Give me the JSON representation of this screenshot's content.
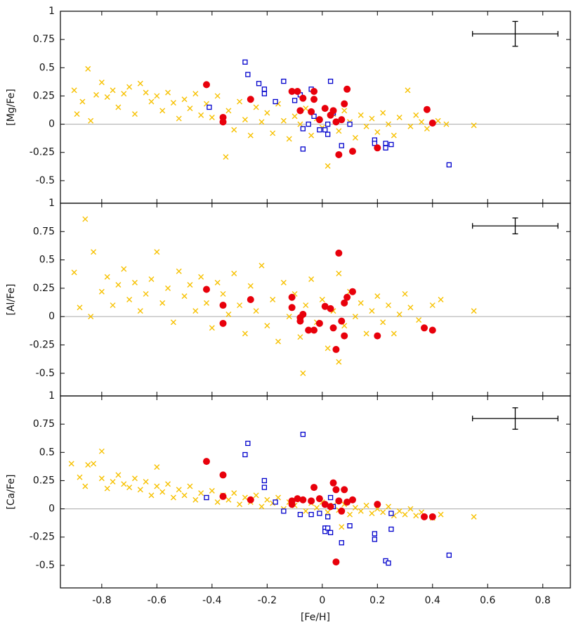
{
  "chart_data": [
    {
      "type": "scatter",
      "y_label": "[Mg/Fe]",
      "xlim": [
        -0.95,
        0.9
      ],
      "ylim": [
        -0.7,
        1
      ],
      "xticks": [
        -0.8,
        -0.6,
        -0.4,
        -0.2,
        0,
        0.2,
        0.4,
        0.6,
        0.8
      ],
      "yticks": [
        1,
        0.75,
        0.5,
        0.25,
        0,
        -0.25,
        -0.5
      ],
      "zero_line": true,
      "error_bar": {
        "x": 0.7,
        "y": 0.8,
        "xerr": 0.155,
        "yerr": 0.11
      },
      "series": [
        {
          "marker": "cross",
          "color": "#f7c100",
          "x": [
            -0.9,
            -0.89,
            -0.87,
            -0.85,
            -0.84,
            -0.82,
            -0.8,
            -0.78,
            -0.76,
            -0.74,
            -0.72,
            -0.7,
            -0.68,
            -0.66,
            -0.64,
            -0.62,
            -0.6,
            -0.58,
            -0.56,
            -0.54,
            -0.52,
            -0.5,
            -0.48,
            -0.46,
            -0.44,
            -0.42,
            -0.4,
            -0.38,
            -0.35,
            -0.34,
            -0.32,
            -0.3,
            -0.28,
            -0.26,
            -0.24,
            -0.22,
            -0.2,
            -0.18,
            -0.16,
            -0.14,
            -0.12,
            -0.1,
            -0.08,
            -0.06,
            -0.04,
            -0.02,
            0,
            0.02,
            0.04,
            0.06,
            0.08,
            0.1,
            0.12,
            0.14,
            0.16,
            0.18,
            0.2,
            0.22,
            0.24,
            0.26,
            0.28,
            0.31,
            0.32,
            0.34,
            0.36,
            0.38,
            0.42,
            0.45,
            0.55
          ],
          "values": [
            0.3,
            0.09,
            0.2,
            0.49,
            0.03,
            0.26,
            0.37,
            0.24,
            0.3,
            0.15,
            0.27,
            0.33,
            0.09,
            0.36,
            0.28,
            0.2,
            0.25,
            0.12,
            0.28,
            0.19,
            0.05,
            0.22,
            0.14,
            0.27,
            0.08,
            0.18,
            0.06,
            0.25,
            -0.29,
            0.12,
            -0.05,
            0.2,
            0.04,
            -0.1,
            0.15,
            0.02,
            0.1,
            -0.08,
            0.18,
            0.03,
            -0.13,
            0.07,
            0,
            0.14,
            -0.1,
            0.05,
            -0.03,
            -0.37,
            0.09,
            -0.06,
            0.12,
            0.02,
            -0.12,
            0.08,
            -0.02,
            0.05,
            -0.07,
            0.1,
            0,
            -0.1,
            0.06,
            0.3,
            -0.02,
            0.08,
            0.02,
            -0.04,
            0.03,
            0,
            -0.01
          ]
        },
        {
          "marker": "square",
          "color": "#0000cc",
          "x": [
            -0.28,
            -0.27,
            -0.23,
            -0.21,
            -0.21,
            -0.17,
            -0.14,
            -0.41,
            -0.1,
            -0.08,
            -0.07,
            -0.07,
            -0.05,
            -0.04,
            -0.03,
            -0.01,
            0.01,
            0.02,
            0.02,
            0.03,
            0.04,
            0.07,
            0.1,
            0.19,
            0.19,
            0.23,
            0.23,
            0.25,
            0.46
          ],
          "values": [
            0.55,
            0.44,
            0.36,
            0.31,
            0.27,
            0.2,
            0.38,
            0.15,
            0.21,
            0.26,
            -0.04,
            -0.22,
            0,
            0.31,
            0.07,
            -0.05,
            -0.05,
            0,
            -0.09,
            0.38,
            0.1,
            -0.19,
            0,
            -0.14,
            -0.17,
            -0.17,
            -0.21,
            -0.18,
            -0.36
          ]
        },
        {
          "marker": "circle",
          "color": "#e8000b",
          "x": [
            -0.42,
            -0.36,
            -0.36,
            -0.26,
            -0.11,
            -0.08,
            -0.07,
            -0.04,
            -0.03,
            -0.03,
            -0.01,
            0.01,
            0.03,
            0.04,
            0.05,
            0.06,
            0.07,
            0.08,
            0.09,
            0.11,
            0.2,
            0.38,
            0.4,
            -0.09
          ],
          "values": [
            0.35,
            0.06,
            0.02,
            0.22,
            0.29,
            0.12,
            0.23,
            0.11,
            0.22,
            0.29,
            0.04,
            0.14,
            0.08,
            0.12,
            0.02,
            -0.27,
            0.04,
            0.18,
            0.31,
            -0.24,
            -0.21,
            0.13,
            0.01,
            0.29
          ]
        }
      ]
    },
    {
      "type": "scatter",
      "y_label": "[Al/Fe]",
      "xlim": [
        -0.95,
        0.9
      ],
      "ylim": [
        -0.7,
        1
      ],
      "xticks": [
        -0.8,
        -0.6,
        -0.4,
        -0.2,
        0,
        0.2,
        0.4,
        0.6,
        0.8
      ],
      "yticks": [
        1,
        0.75,
        0.5,
        0.25,
        0,
        -0.25,
        -0.5
      ],
      "zero_line": true,
      "error_bar": {
        "x": 0.7,
        "y": 0.8,
        "xerr": 0.155,
        "yerr": 0.07
      },
      "series": [
        {
          "marker": "cross",
          "color": "#f7c100",
          "x": [
            -0.9,
            -0.88,
            -0.86,
            -0.84,
            -0.83,
            -0.8,
            -0.78,
            -0.76,
            -0.74,
            -0.72,
            -0.7,
            -0.68,
            -0.66,
            -0.64,
            -0.62,
            -0.6,
            -0.58,
            -0.56,
            -0.54,
            -0.52,
            -0.5,
            -0.48,
            -0.46,
            -0.44,
            -0.42,
            -0.4,
            -0.38,
            -0.36,
            -0.34,
            -0.32,
            -0.3,
            -0.28,
            -0.26,
            -0.24,
            -0.22,
            -0.2,
            -0.18,
            -0.16,
            -0.14,
            -0.12,
            -0.1,
            -0.08,
            -0.06,
            -0.04,
            -0.02,
            0,
            0.02,
            0.04,
            0.06,
            0.06,
            0.08,
            0.1,
            0.12,
            0.14,
            0.16,
            0.18,
            0.2,
            0.22,
            0.24,
            0.26,
            0.28,
            0.3,
            0.32,
            0.35,
            0.4,
            0.43,
            -0.07,
            0.55
          ],
          "values": [
            0.39,
            0.08,
            0.86,
            0,
            0.57,
            0.22,
            0.35,
            0.1,
            0.28,
            0.42,
            0.15,
            0.3,
            0.05,
            0.2,
            0.33,
            0.57,
            0.12,
            0.25,
            -0.05,
            0.4,
            0.18,
            0.28,
            0.05,
            0.35,
            0.12,
            -0.1,
            0.3,
            0.2,
            0.02,
            0.38,
            0.1,
            -0.15,
            0.27,
            0.05,
            0.45,
            -0.08,
            0.15,
            -0.22,
            0.3,
            0,
            0.2,
            -0.18,
            0.1,
            0.33,
            -0.05,
            0.15,
            -0.28,
            0.05,
            0.38,
            -0.4,
            -0.08,
            0.22,
            0,
            0.12,
            -0.15,
            0.05,
            0.18,
            -0.05,
            0.1,
            -0.15,
            0.02,
            0.2,
            0.08,
            -0.03,
            0.1,
            0.15,
            -0.5,
            0.05
          ]
        },
        {
          "marker": "circle",
          "color": "#e8000b",
          "x": [
            -0.42,
            -0.36,
            -0.36,
            -0.26,
            -0.11,
            -0.11,
            -0.08,
            -0.08,
            -0.07,
            -0.05,
            -0.03,
            -0.01,
            0.01,
            0.03,
            0.04,
            0.05,
            0.06,
            0.07,
            0.08,
            0.08,
            0.09,
            0.11,
            0.2,
            0.37,
            0.4
          ],
          "values": [
            0.24,
            0.1,
            -0.06,
            0.15,
            0.17,
            0.08,
            -0.01,
            -0.04,
            0.02,
            -0.12,
            -0.12,
            -0.06,
            0.09,
            0.07,
            -0.1,
            -0.29,
            0.56,
            -0.04,
            -0.17,
            0.12,
            0.17,
            0.22,
            -0.17,
            -0.1,
            -0.12
          ]
        }
      ]
    },
    {
      "type": "scatter",
      "y_label": "[Ca/Fe]",
      "x_label": "[Fe/H]",
      "xlim": [
        -0.95,
        0.9
      ],
      "ylim": [
        -0.7,
        1
      ],
      "xticks": [
        -0.8,
        -0.6,
        -0.4,
        -0.2,
        0,
        0.2,
        0.4,
        0.6,
        0.8
      ],
      "yticks": [
        1,
        0.75,
        0.5,
        0.25,
        0,
        -0.25,
        -0.5
      ],
      "zero_line": true,
      "error_bar": {
        "x": 0.7,
        "y": 0.8,
        "xerr": 0.155,
        "yerr": 0.095
      },
      "series": [
        {
          "marker": "cross",
          "color": "#f7c100",
          "x": [
            -0.91,
            -0.88,
            -0.86,
            -0.85,
            -0.83,
            -0.8,
            -0.8,
            -0.78,
            -0.76,
            -0.74,
            -0.72,
            -0.7,
            -0.68,
            -0.66,
            -0.64,
            -0.62,
            -0.6,
            -0.58,
            -0.56,
            -0.54,
            -0.52,
            -0.5,
            -0.48,
            -0.46,
            -0.44,
            -0.42,
            -0.4,
            -0.38,
            -0.36,
            -0.34,
            -0.32,
            -0.3,
            -0.28,
            -0.26,
            -0.24,
            -0.22,
            -0.2,
            -0.18,
            -0.16,
            -0.14,
            -0.12,
            -0.1,
            -0.08,
            -0.06,
            -0.04,
            -0.02,
            0,
            0.02,
            0.04,
            0.06,
            0.08,
            0.1,
            0.12,
            0.14,
            0.16,
            0.18,
            0.2,
            0.22,
            0.24,
            0.26,
            0.28,
            0.3,
            0.32,
            0.34,
            0.36,
            0.4,
            0.43,
            0.55,
            -0.6,
            0.07
          ],
          "values": [
            0.4,
            0.28,
            0.2,
            0.39,
            0.4,
            0.51,
            0.27,
            0.18,
            0.24,
            0.3,
            0.22,
            0.19,
            0.27,
            0.17,
            0.24,
            0.12,
            0.2,
            0.15,
            0.22,
            0.1,
            0.17,
            0.12,
            0.2,
            0.08,
            0.14,
            0.1,
            0.16,
            0.06,
            0.12,
            0.08,
            0.14,
            0.04,
            0.1,
            0.06,
            0.12,
            0.02,
            0.08,
            0.05,
            0.1,
            0,
            0.06,
            0.03,
            0.08,
            -0.02,
            0.05,
            0.01,
            0.06,
            -0.03,
            0.03,
            -0.01,
            0.04,
            -0.05,
            0.01,
            -0.02,
            0.03,
            -0.04,
            0,
            -0.03,
            0.02,
            -0.06,
            -0.02,
            -0.05,
            0,
            -0.06,
            -0.03,
            -0.08,
            -0.05,
            -0.07,
            0.37,
            -0.16
          ]
        },
        {
          "marker": "square",
          "color": "#0000cc",
          "x": [
            -0.42,
            -0.27,
            -0.28,
            -0.21,
            -0.21,
            -0.17,
            -0.14,
            -0.07,
            -0.08,
            -0.04,
            -0.01,
            0.01,
            0.01,
            0.02,
            0.02,
            0.03,
            0.04,
            0.03,
            0.07,
            0.1,
            0.19,
            0.19,
            0.23,
            0.24,
            0.25,
            0.25,
            0.46
          ],
          "values": [
            0.1,
            0.58,
            0.48,
            0.25,
            0.19,
            0.06,
            -0.02,
            0.66,
            -0.05,
            -0.05,
            -0.04,
            -0.17,
            -0.2,
            -0.17,
            -0.07,
            0.1,
            0.02,
            -0.21,
            -0.3,
            -0.15,
            -0.22,
            -0.27,
            -0.46,
            -0.48,
            -0.04,
            -0.18,
            -0.41
          ]
        },
        {
          "marker": "circle",
          "color": "#e8000b",
          "x": [
            -0.42,
            -0.36,
            -0.36,
            -0.26,
            -0.11,
            -0.11,
            -0.09,
            -0.07,
            -0.04,
            -0.03,
            -0.01,
            0.01,
            0.03,
            0.04,
            0.05,
            0.05,
            0.06,
            0.07,
            0.08,
            0.09,
            0.11,
            0.2,
            0.37,
            0.4
          ],
          "values": [
            0.42,
            0.3,
            0.11,
            0.08,
            0.04,
            0.07,
            0.09,
            0.08,
            0.07,
            0.19,
            0.09,
            0.04,
            0.02,
            0.23,
            -0.47,
            0.17,
            0.07,
            -0.02,
            0.17,
            0.06,
            0.08,
            0.04,
            -0.07,
            -0.07
          ]
        }
      ]
    }
  ]
}
